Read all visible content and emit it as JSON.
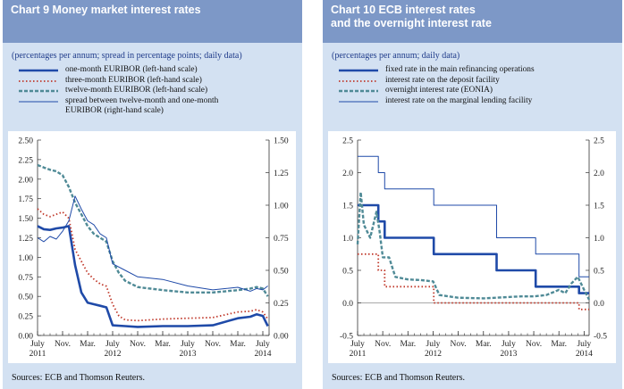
{
  "chart_data": [
    {
      "type": "line",
      "title": "Chart 9 Money market interest rates",
      "subtitle": "(percentages per annum; spread in percentage points; daily data)",
      "source": "Sources: ECB and Thomson Reuters.",
      "x_ticks": [
        {
          "label": "July",
          "sub": "2011",
          "t": 0
        },
        {
          "label": "Nov.",
          "sub": "",
          "t": 4
        },
        {
          "label": "Mar.",
          "sub": "",
          "t": 8
        },
        {
          "label": "July",
          "sub": "2012",
          "t": 12
        },
        {
          "label": "Nov.",
          "sub": "",
          "t": 16
        },
        {
          "label": "Mar.",
          "sub": "",
          "t": 20
        },
        {
          "label": "July",
          "sub": "2013",
          "t": 24
        },
        {
          "label": "Nov.",
          "sub": "",
          "t": 28
        },
        {
          "label": "Mar.",
          "sub": "",
          "t": 32
        },
        {
          "label": "July",
          "sub": "2014",
          "t": 36
        }
      ],
      "x_range": [
        0,
        37
      ],
      "y_left": {
        "range": [
          0,
          2.5
        ],
        "ticks": [
          "0.00",
          "0.25",
          "0.50",
          "0.75",
          "1.00",
          "1.25",
          "1.50",
          "1.75",
          "2.00",
          "2.25",
          "2.50"
        ]
      },
      "y_right": {
        "range": [
          0,
          1.5
        ],
        "ticks": [
          "0.00",
          "0.25",
          "0.50",
          "0.75",
          "1.00",
          "1.25",
          "1.50"
        ]
      },
      "series": [
        {
          "name": "one-month EURIBOR (left-hand scale)",
          "axis": "left",
          "style": "thick",
          "color": "#1f4aa8",
          "t": [
            0,
            1,
            2,
            3,
            4,
            5,
            6,
            7,
            8,
            9,
            10,
            11,
            12,
            14,
            16,
            20,
            24,
            28,
            32,
            34,
            35,
            36,
            36.8
          ],
          "values": [
            1.4,
            1.36,
            1.35,
            1.37,
            1.38,
            1.4,
            0.9,
            0.55,
            0.42,
            0.4,
            0.38,
            0.36,
            0.13,
            0.12,
            0.11,
            0.12,
            0.12,
            0.13,
            0.22,
            0.24,
            0.27,
            0.25,
            0.12
          ]
        },
        {
          "name": "three-month EURIBOR (left-hand scale)",
          "axis": "left",
          "style": "dotted",
          "color": "#c0392b",
          "t": [
            0,
            1,
            2,
            3,
            4,
            5,
            6,
            7,
            8,
            9,
            10,
            11,
            12,
            13,
            14,
            16,
            20,
            24,
            28,
            32,
            34,
            35,
            36,
            36.8
          ],
          "values": [
            1.62,
            1.55,
            1.52,
            1.55,
            1.58,
            1.5,
            1.1,
            0.95,
            0.8,
            0.72,
            0.66,
            0.63,
            0.4,
            0.25,
            0.2,
            0.19,
            0.21,
            0.22,
            0.23,
            0.3,
            0.31,
            0.33,
            0.3,
            0.21
          ]
        },
        {
          "name": "twelve-month EURIBOR (left-hand scale)",
          "axis": "left",
          "style": "dashed",
          "color": "#4f8a96",
          "t": [
            0,
            1,
            2,
            3,
            4,
            5,
            6,
            7,
            8,
            9,
            10,
            11,
            12,
            13,
            14,
            16,
            20,
            24,
            28,
            32,
            34,
            35,
            36,
            36.8
          ],
          "values": [
            2.18,
            2.15,
            2.12,
            2.1,
            2.05,
            1.9,
            1.7,
            1.55,
            1.4,
            1.3,
            1.25,
            1.2,
            0.95,
            0.8,
            0.7,
            0.62,
            0.58,
            0.55,
            0.55,
            0.58,
            0.6,
            0.62,
            0.6,
            0.5
          ]
        },
        {
          "name": "spread between twelve-month and one-month EURIBOR (right-hand scale)",
          "axis": "right",
          "style": "thin",
          "color": "#1f4aa8",
          "t": [
            0,
            1,
            2,
            3,
            4,
            5,
            6,
            7,
            8,
            9,
            10,
            11,
            12,
            14,
            16,
            20,
            24,
            28,
            32,
            34,
            35,
            36,
            36.8
          ],
          "values": [
            0.75,
            0.72,
            0.76,
            0.74,
            0.8,
            0.88,
            1.07,
            0.97,
            0.88,
            0.85,
            0.78,
            0.75,
            0.55,
            0.5,
            0.45,
            0.43,
            0.38,
            0.35,
            0.37,
            0.34,
            0.36,
            0.35,
            0.38
          ]
        }
      ]
    },
    {
      "type": "line",
      "title": "Chart 10 ECB interest rates\nand the overnight interest rate",
      "subtitle": "(percentages per annum; daily data)",
      "source": "Sources: ECB and Thomson Reuters.",
      "x_ticks": [
        {
          "label": "July",
          "sub": "2011",
          "t": 0
        },
        {
          "label": "Nov.",
          "sub": "",
          "t": 4
        },
        {
          "label": "Mar.",
          "sub": "",
          "t": 8
        },
        {
          "label": "July",
          "sub": "2012",
          "t": 12
        },
        {
          "label": "Nov.",
          "sub": "",
          "t": 16
        },
        {
          "label": "Mar.",
          "sub": "",
          "t": 20
        },
        {
          "label": "July",
          "sub": "2013",
          "t": 24
        },
        {
          "label": "Nov.",
          "sub": "",
          "t": 28
        },
        {
          "label": "Mar.",
          "sub": "",
          "t": 32
        },
        {
          "label": "July",
          "sub": "2014",
          "t": 36
        }
      ],
      "x_range": [
        0,
        36.8
      ],
      "y_left": {
        "range": [
          -0.5,
          2.5
        ],
        "ticks": [
          "-0.5",
          "0.0",
          "0.5",
          "1.0",
          "1.5",
          "2.0",
          "2.5"
        ]
      },
      "y_right": {
        "range": [
          -0.5,
          2.5
        ],
        "ticks": [
          "-0.5",
          "0.0",
          "0.5",
          "1.0",
          "1.5",
          "2.0",
          "2.5"
        ]
      },
      "series": [
        {
          "name": "fixed rate in the main refinancing operations",
          "axis": "left",
          "style": "thick",
          "step": true,
          "color": "#1f4aa8",
          "t": [
            0,
            3.3,
            4.3,
            12.1,
            22.1,
            28.3,
            35.2,
            36.8
          ],
          "values": [
            1.5,
            1.25,
            1.0,
            0.75,
            0.5,
            0.25,
            0.15,
            0.15
          ]
        },
        {
          "name": "interest rate on the deposit facility",
          "axis": "left",
          "style": "dotted",
          "step": true,
          "color": "#c0392b",
          "t": [
            0,
            3.3,
            4.3,
            6.5,
            12.1,
            35.2,
            36.8
          ],
          "values": [
            0.75,
            0.5,
            0.25,
            0.25,
            0.0,
            -0.1,
            -0.1
          ]
        },
        {
          "name": "overnight interest rate (EONIA)",
          "axis": "left",
          "style": "dashed",
          "color": "#4f8a96",
          "t": [
            0,
            0.5,
            1,
            2,
            3,
            3.5,
            4,
            5,
            6,
            7,
            8,
            10,
            12,
            13,
            16,
            20,
            22,
            24,
            26,
            28,
            30,
            32,
            33,
            34,
            35,
            36,
            36.8
          ],
          "values": [
            0.9,
            1.7,
            1.2,
            1.0,
            1.4,
            1.1,
            0.7,
            0.7,
            0.4,
            0.38,
            0.36,
            0.35,
            0.33,
            0.12,
            0.08,
            0.07,
            0.08,
            0.09,
            0.1,
            0.1,
            0.12,
            0.2,
            0.15,
            0.3,
            0.4,
            0.2,
            0.05
          ]
        },
        {
          "name": "interest rate on the marginal lending facility",
          "axis": "left",
          "style": "thin",
          "step": true,
          "color": "#1f4aa8",
          "t": [
            0,
            3.3,
            4.3,
            12.1,
            22.1,
            28.3,
            35.2,
            36.8
          ],
          "values": [
            2.25,
            2.0,
            1.75,
            1.5,
            1.0,
            0.75,
            0.4,
            0.4
          ]
        }
      ]
    }
  ]
}
